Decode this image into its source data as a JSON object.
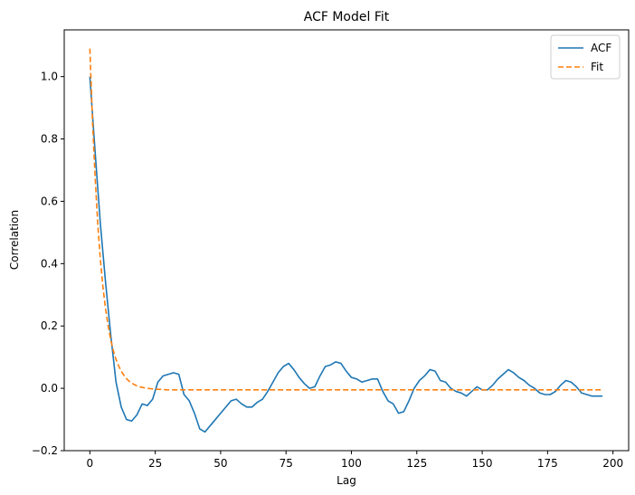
{
  "chart_data": {
    "type": "line",
    "title": "ACF Model Fit",
    "xlabel": "Lag",
    "ylabel": "Correlation",
    "xlim": [
      -9.8,
      206
    ],
    "ylim": [
      -0.2,
      1.15
    ],
    "xticks": [
      0,
      25,
      50,
      75,
      100,
      125,
      150,
      175,
      200
    ],
    "yticks": [
      -0.2,
      0.0,
      0.2,
      0.4,
      0.6,
      0.8,
      1.0
    ],
    "xtick_labels": [
      "0",
      "25",
      "50",
      "75",
      "100",
      "125",
      "150",
      "175",
      "200"
    ],
    "ytick_labels": [
      "−0.2",
      "0.0",
      "0.2",
      "0.4",
      "0.6",
      "0.8",
      "1.0"
    ],
    "legend_position": "top-right",
    "grid": false,
    "series": [
      {
        "name": "ACF",
        "color": "#1f77b4",
        "style": "solid",
        "x": [
          0,
          2,
          4,
          6,
          8,
          10,
          12,
          14,
          16,
          18,
          20,
          22,
          24,
          26,
          28,
          30,
          32,
          34,
          36,
          38,
          40,
          42,
          44,
          46,
          48,
          50,
          52,
          54,
          56,
          58,
          60,
          62,
          64,
          66,
          68,
          70,
          72,
          74,
          76,
          78,
          80,
          82,
          84,
          86,
          88,
          90,
          92,
          94,
          96,
          98,
          100,
          102,
          104,
          106,
          108,
          110,
          112,
          114,
          116,
          118,
          120,
          122,
          124,
          126,
          128,
          130,
          132,
          134,
          136,
          138,
          140,
          142,
          144,
          146,
          148,
          150,
          152,
          154,
          156,
          158,
          160,
          162,
          164,
          166,
          168,
          170,
          172,
          174,
          176,
          178,
          180,
          182,
          184,
          186,
          188,
          190,
          192,
          194,
          196
        ],
        "values": [
          1.0,
          0.76,
          0.53,
          0.34,
          0.17,
          0.02,
          -0.06,
          -0.1,
          -0.105,
          -0.085,
          -0.05,
          -0.055,
          -0.035,
          0.02,
          0.04,
          0.045,
          0.05,
          0.045,
          -0.02,
          -0.04,
          -0.08,
          -0.13,
          -0.14,
          -0.12,
          -0.1,
          -0.08,
          -0.06,
          -0.04,
          -0.035,
          -0.05,
          -0.06,
          -0.06,
          -0.045,
          -0.035,
          -0.01,
          0.02,
          0.05,
          0.07,
          0.08,
          0.06,
          0.035,
          0.015,
          0.0,
          0.005,
          0.04,
          0.07,
          0.075,
          0.085,
          0.08,
          0.055,
          0.035,
          0.03,
          0.02,
          0.025,
          0.03,
          0.03,
          -0.01,
          -0.04,
          -0.05,
          -0.08,
          -0.075,
          -0.04,
          0.0,
          0.025,
          0.04,
          0.06,
          0.055,
          0.025,
          0.02,
          0.0,
          -0.01,
          -0.015,
          -0.025,
          -0.01,
          0.005,
          -0.005,
          -0.005,
          0.01,
          0.03,
          0.045,
          0.06,
          0.05,
          0.035,
          0.025,
          0.01,
          0.0,
          -0.015,
          -0.02,
          -0.02,
          -0.01,
          0.01,
          0.025,
          0.02,
          0.005,
          -0.015,
          -0.02,
          -0.025,
          -0.025,
          -0.025
        ]
      },
      {
        "name": "Fit",
        "color": "#ff7f0e",
        "style": "dashed",
        "x": [
          0,
          1,
          2,
          3,
          4,
          5,
          6,
          7,
          8,
          9,
          10,
          11,
          12,
          13,
          14,
          15,
          16,
          17,
          18,
          19,
          20,
          22,
          24,
          26,
          28,
          30,
          35,
          40,
          50,
          75,
          100,
          125,
          150,
          175,
          196
        ],
        "values": [
          1.09,
          0.86,
          0.68,
          0.53,
          0.415,
          0.325,
          0.255,
          0.2,
          0.155,
          0.12,
          0.093,
          0.072,
          0.055,
          0.042,
          0.031,
          0.023,
          0.017,
          0.012,
          0.008,
          0.005,
          0.003,
          0.0,
          -0.002,
          -0.003,
          -0.004,
          -0.005,
          -0.005,
          -0.005,
          -0.005,
          -0.005,
          -0.005,
          -0.005,
          -0.005,
          -0.005,
          -0.005
        ]
      }
    ]
  }
}
